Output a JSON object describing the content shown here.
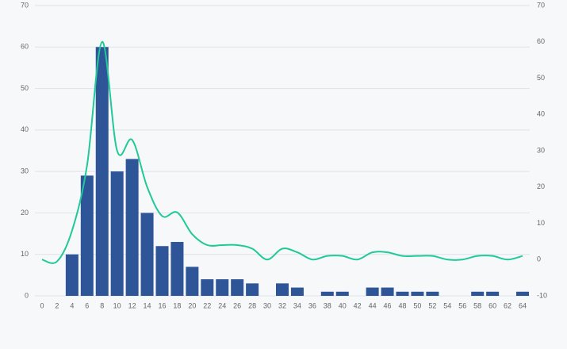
{
  "chart_data": {
    "type": "bar",
    "categories": [
      "0",
      "2",
      "4",
      "6",
      "8",
      "10",
      "12",
      "14",
      "16",
      "18",
      "20",
      "22",
      "24",
      "26",
      "28",
      "30",
      "32",
      "34",
      "36",
      "38",
      "40",
      "42",
      "44",
      "46",
      "48",
      "50",
      "52",
      "54",
      "56",
      "58",
      "60",
      "62",
      "64"
    ],
    "series": [
      {
        "color": "#2e5597",
        "values": [
          0,
          0,
          10,
          29,
          60,
          30,
          33,
          20,
          12,
          13,
          7,
          4,
          4,
          4,
          3,
          0,
          3,
          2,
          0,
          1,
          1,
          0,
          2,
          2,
          1,
          1,
          1,
          0,
          0,
          1,
          1,
          0,
          1
        ]
      },
      {
        "color": "#20c997",
        "axis": "y2",
        "type": "line",
        "values": [
          0,
          -0.5,
          8,
          26,
          60,
          30,
          33,
          20,
          12,
          13,
          7,
          4,
          4,
          4,
          3,
          0,
          3,
          2,
          0,
          1,
          1,
          0,
          2,
          2,
          1,
          1,
          1,
          0,
          0,
          1,
          1,
          0,
          1
        ]
      }
    ],
    "ylim": [
      0,
      70
    ],
    "yticks": [
      0,
      10,
      20,
      30,
      40,
      50,
      60,
      70
    ],
    "y2lim": [
      -10,
      70
    ],
    "y2ticks": [
      -10,
      0,
      10,
      20,
      30,
      40,
      50,
      60,
      70
    ],
    "grid": true
  }
}
